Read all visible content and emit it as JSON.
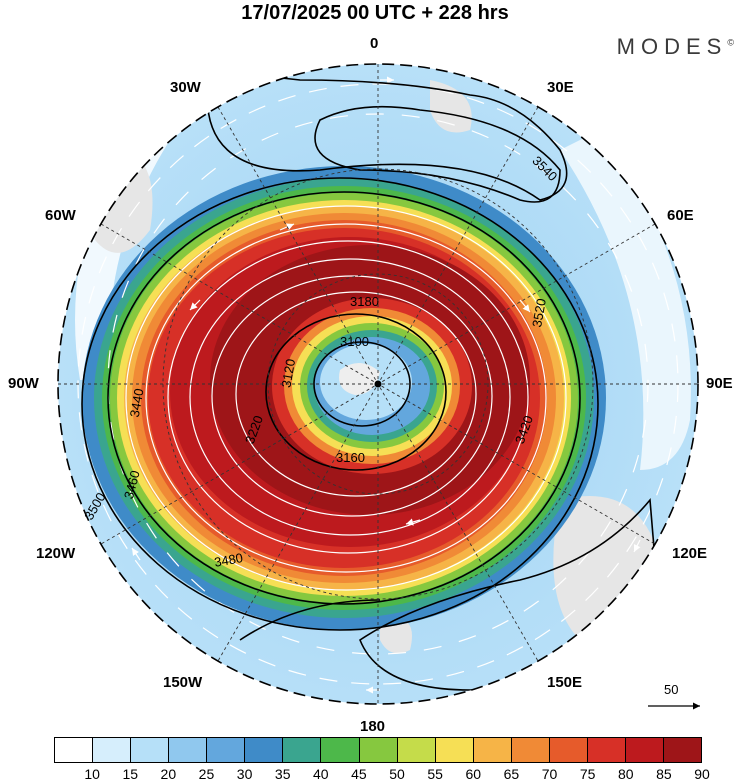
{
  "header": {
    "title": "17/07/2025  00 UTC  + 228 hrs",
    "brand": "MODES",
    "brand_mark": "©"
  },
  "longitudes": {
    "top": "0",
    "bottom": "180",
    "right": "90E",
    "left": "90W",
    "ne": "30E",
    "e60": "60E",
    "se120": "120E",
    "se150": "150E",
    "nw": "30W",
    "w60": "60W",
    "sw120": "120W",
    "sw150": "150W"
  },
  "reference_vector": {
    "label": "50"
  },
  "chart_data": {
    "type": "heatmap",
    "title": "17/07/2025  00 UTC  + 228 hrs",
    "projection": "south-polar-stereographic",
    "colorbar": {
      "levels": [
        10,
        15,
        20,
        25,
        30,
        35,
        40,
        45,
        50,
        55,
        60,
        65,
        70,
        75,
        80,
        85,
        90
      ],
      "colors": [
        "#ffffff",
        "#d6eefc",
        "#b6e0f8",
        "#90c8ee",
        "#63a7dd",
        "#3f8bc8",
        "#3aa58f",
        "#4db84a",
        "#86c83f",
        "#c5dc4a",
        "#f6df55",
        "#f6b447",
        "#f08a36",
        "#e65b2b",
        "#d73027",
        "#bd1a1e",
        "#9e1518"
      ]
    },
    "contour_labels": [
      "3100",
      "3120",
      "3160",
      "3180",
      "3220",
      "3420",
      "3440",
      "3460",
      "3480",
      "3500",
      "3520",
      "3540"
    ],
    "reference_vector": 50
  }
}
